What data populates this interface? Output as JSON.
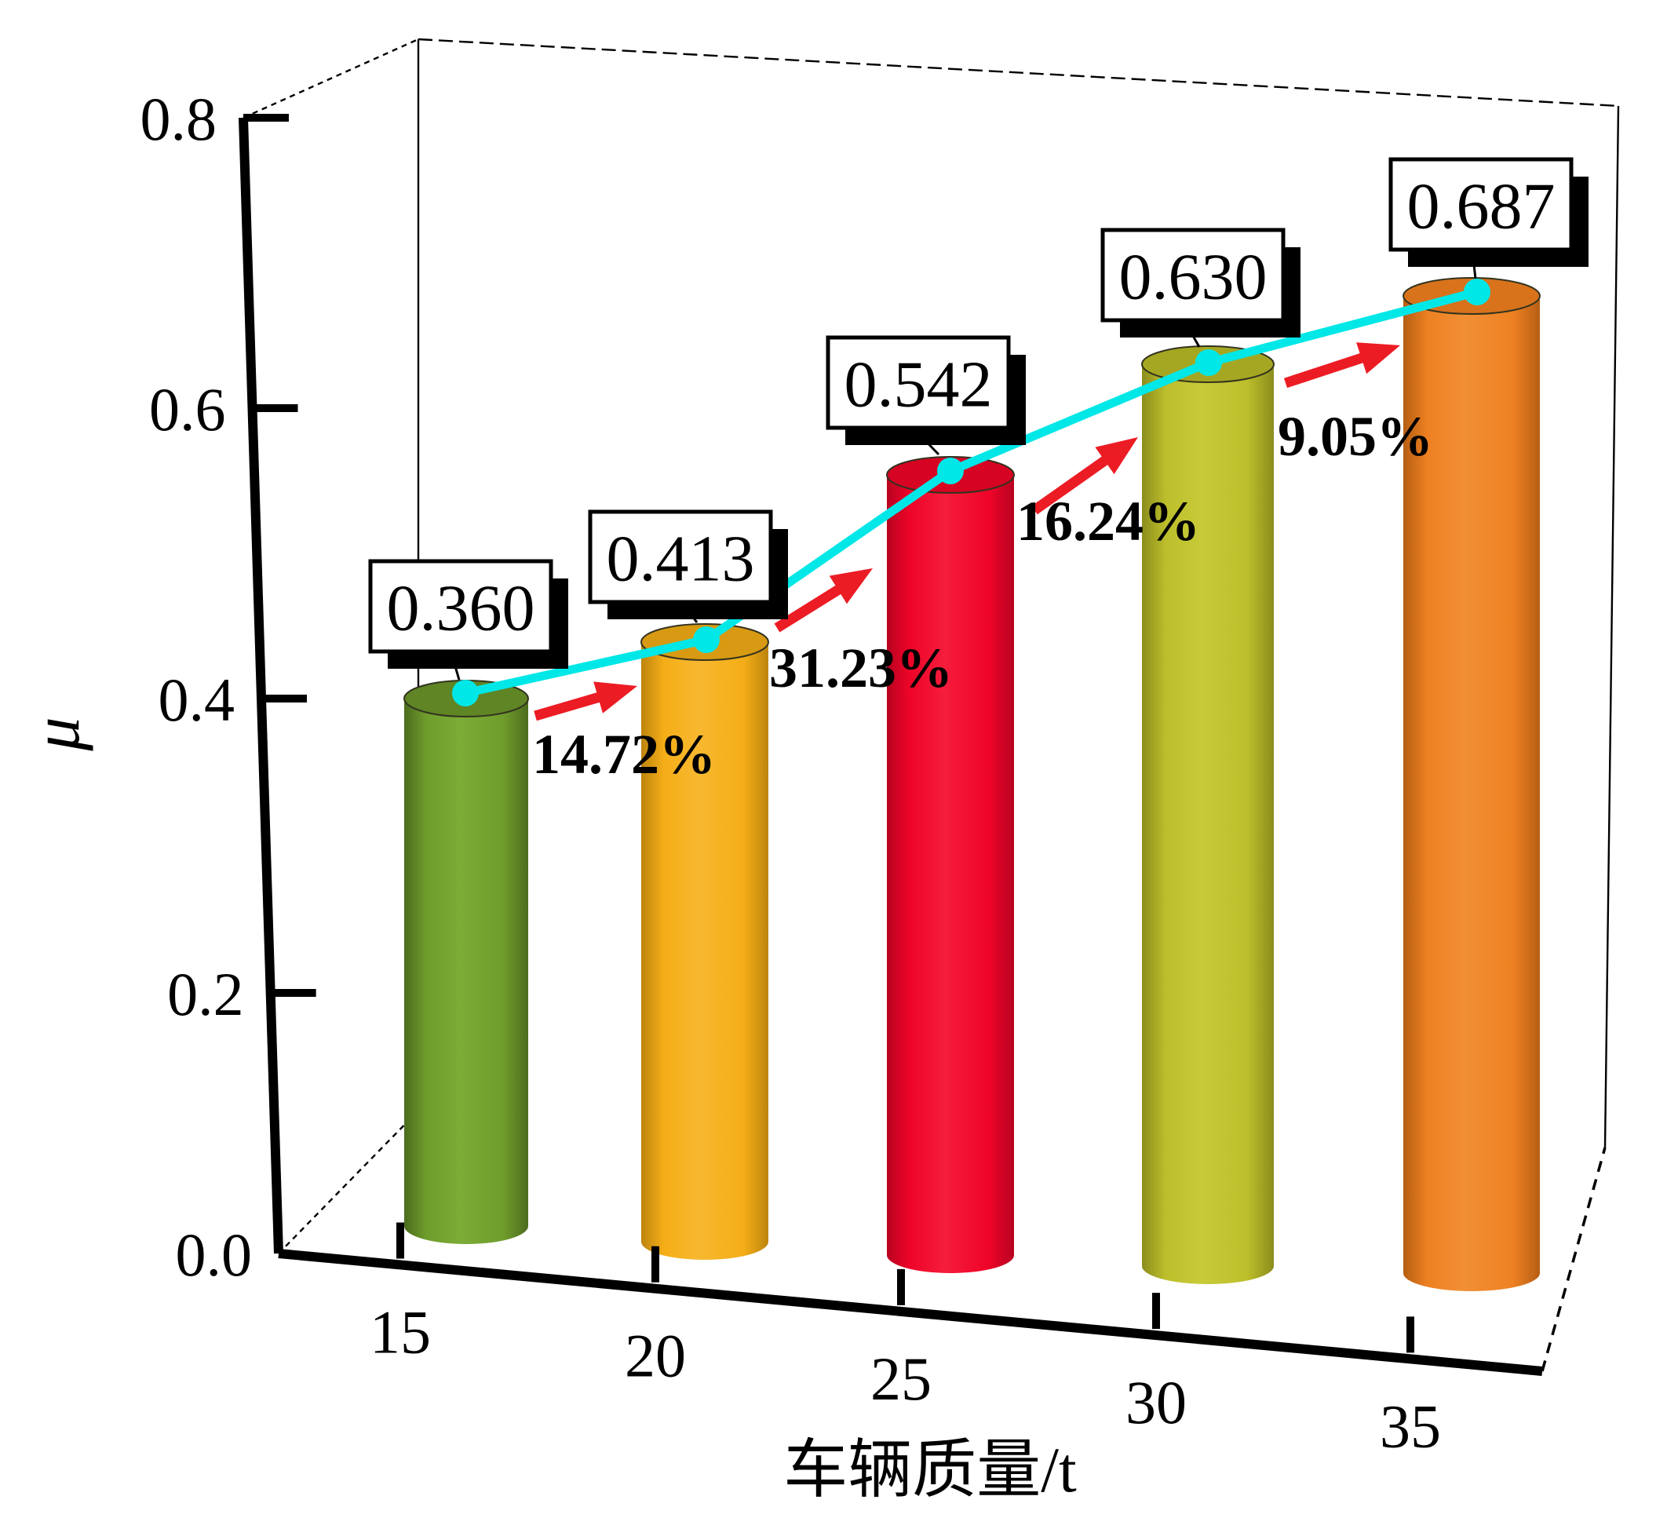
{
  "chart_data": {
    "type": "bar",
    "style": "3d-cylinder-bars-with-trend-line",
    "categories": [
      "15",
      "20",
      "25",
      "30",
      "35"
    ],
    "series": [
      {
        "name": "μ",
        "values": [
          0.36,
          0.413,
          0.542,
          0.63,
          0.687
        ]
      }
    ],
    "value_labels": [
      "0.360",
      "0.413",
      "0.542",
      "0.630",
      "0.687"
    ],
    "growth_annotations": [
      "14.72%",
      "31.23%",
      "16.24%",
      "9.05%"
    ],
    "xlabel": "车辆质量/t",
    "ylabel": "μ",
    "ylim": [
      0.0,
      0.8
    ],
    "ytick_labels": [
      "0.0",
      "0.2",
      "0.4",
      "0.6",
      "0.8"
    ],
    "xtick_labels": [
      "15",
      "20",
      "25",
      "30",
      "35"
    ],
    "grid": false,
    "legend": false,
    "background": "#ffffff",
    "axis_color": "#000000",
    "bar_colors": [
      "#6f9d2c",
      "#f5ae17",
      "#ee0428",
      "#bcbe2b",
      "#ee8122"
    ],
    "bar_top_colors": [
      "#5f8525",
      "#d89a12",
      "#d60323",
      "#a5a723",
      "#d8731c"
    ],
    "bar_edge_colors": [
      "#4c6b1e",
      "#bd850e",
      "#b80220",
      "#8b8d1d",
      "#b65e13"
    ],
    "bar_highlight_colors": [
      "#7cab36",
      "#f7b830",
      "#f51c3c",
      "#c8ca38",
      "#f18f35"
    ],
    "line_color": "#00e7e7",
    "arrow_color": "#ec1c24",
    "label_box": {
      "fill": "#ffffff",
      "border": "#000000",
      "shadow": "#000000"
    }
  }
}
